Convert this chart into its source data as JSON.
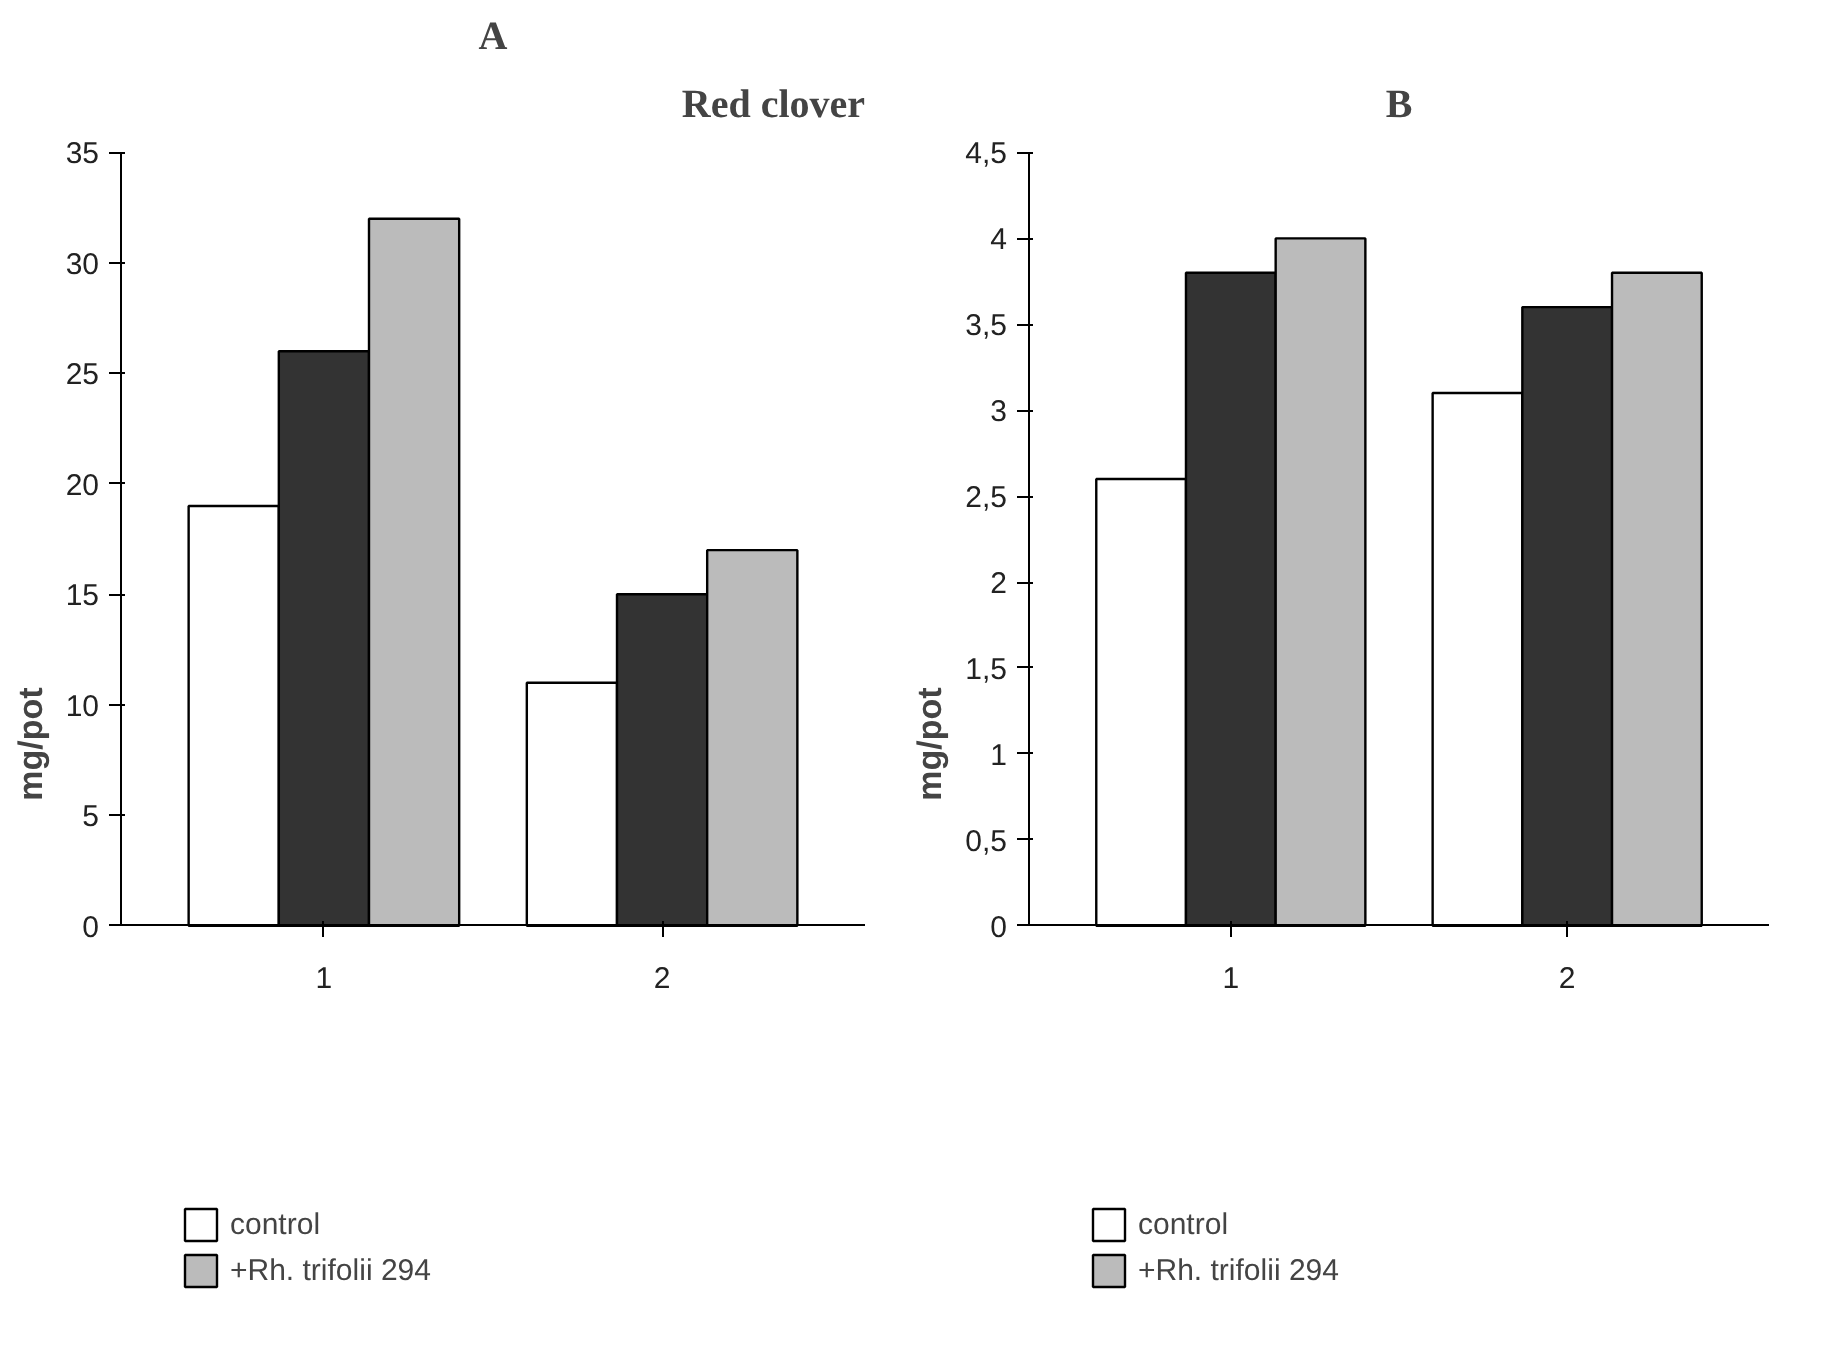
{
  "chart_data": [
    {
      "type": "bar",
      "title": "A",
      "annotations": [
        "Red clover"
      ],
      "ylabel": "mg/pot",
      "categories": [
        "1",
        "2"
      ],
      "series": [
        {
          "name": "control",
          "color": "#ffffff",
          "values": [
            19,
            11
          ]
        },
        {
          "color": "#333333",
          "values": [
            26,
            15
          ]
        },
        {
          "name": "+Rh. trifolii 294",
          "color": "#bbbbbb",
          "values": [
            32,
            17
          ]
        }
      ],
      "ylim": [
        0,
        35
      ],
      "yticks": [
        0,
        5,
        10,
        15,
        20,
        25,
        30,
        35
      ],
      "grid": false,
      "legend": "bottom"
    },
    {
      "type": "bar",
      "title": "B",
      "ylabel": "mg/pot",
      "categories": [
        "1",
        "2"
      ],
      "series": [
        {
          "name": "control",
          "color": "#ffffff",
          "values": [
            2.6,
            3.1
          ]
        },
        {
          "color": "#333333",
          "values": [
            3.8,
            3.6
          ]
        },
        {
          "name": "+Rh. trifolii 294",
          "color": "#bbbbbb",
          "values": [
            4.0,
            3.8
          ]
        }
      ],
      "ylim": [
        0,
        4.5
      ],
      "yticks": [
        0,
        {
          "value": 0.5,
          "label": "0,5"
        },
        1,
        {
          "value": 1.5,
          "label": "1,5"
        },
        2,
        {
          "value": 2.5,
          "label": "2,5"
        },
        3,
        {
          "value": 3.5,
          "label": "3,5"
        },
        4,
        {
          "value": 4.5,
          "label": "4,5"
        }
      ],
      "grid": false,
      "legend": "bottom"
    }
  ]
}
